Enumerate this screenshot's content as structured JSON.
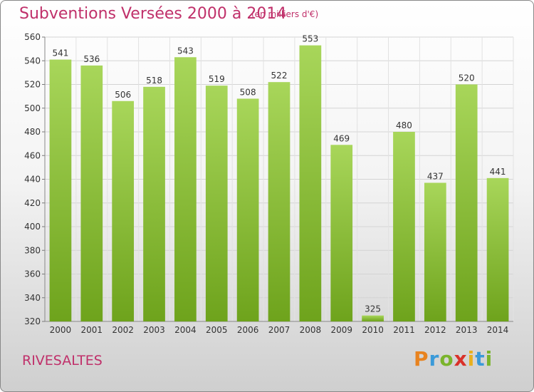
{
  "title": "Subventions Versées 2000 à 2014",
  "subtitle": "(en milliers d'€)",
  "city": "RIVESALTES",
  "logo": {
    "letters": [
      "P",
      "r",
      "o",
      "x",
      "i",
      "t",
      "i"
    ],
    "colors": [
      "#e8831f",
      "#3a9ad9",
      "#7ab42c",
      "#d9312a",
      "#e8b01f",
      "#3a9ad9",
      "#7ab42c"
    ]
  },
  "colors": {
    "bar_top": "#a8d65a",
    "bar_bottom": "#6ea31c",
    "text_accent": "#c0306a"
  },
  "chart_data": {
    "type": "bar",
    "title": "Subventions Versées 2000 à 2014",
    "subtitle": "(en milliers d'€)",
    "categories": [
      "2000",
      "2001",
      "2002",
      "2003",
      "2004",
      "2005",
      "2006",
      "2007",
      "2008",
      "2009",
      "2010",
      "2011",
      "2012",
      "2013",
      "2014"
    ],
    "values": [
      541,
      536,
      506,
      518,
      543,
      519,
      508,
      522,
      553,
      469,
      325,
      480,
      437,
      520,
      441
    ],
    "ylim": [
      320,
      560
    ],
    "yticks": [
      320,
      340,
      360,
      380,
      400,
      420,
      440,
      460,
      480,
      500,
      520,
      540,
      560
    ],
    "grid": true,
    "xlabel": "",
    "ylabel": ""
  }
}
